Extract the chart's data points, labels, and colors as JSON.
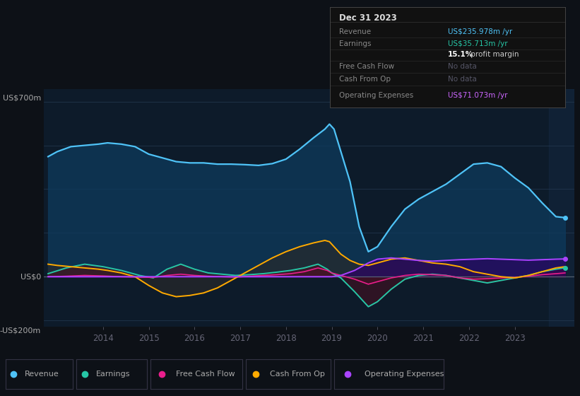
{
  "bg_color": "#0d1117",
  "plot_bg_color": "#0d1b2a",
  "grid_color": "#253a52",
  "zero_line_color": "#556070",
  "title_box": {
    "date": "Dec 31 2023",
    "rows": [
      {
        "label": "Revenue",
        "value": "US$235.978m",
        "suffix": " /yr",
        "value_color": "#4fc3f7"
      },
      {
        "label": "Earnings",
        "value": "US$35.713m",
        "suffix": " /yr",
        "value_color": "#26c6a6"
      },
      {
        "label": "",
        "value": "15.1%",
        "suffix": " profit margin",
        "value_color": "#ffffff"
      },
      {
        "label": "Free Cash Flow",
        "value": "No data",
        "suffix": "",
        "value_color": "#555566"
      },
      {
        "label": "Cash From Op",
        "value": "No data",
        "suffix": "",
        "value_color": "#555566"
      },
      {
        "label": "Operating Expenses",
        "value": "US$71.073m",
        "suffix": " /yr",
        "value_color": "#cc66ff"
      }
    ]
  },
  "ylabel_top": "US$700m",
  "ylabel_zero": "US$0",
  "ylabel_bottom": "-US$200m",
  "ylim": [
    -200,
    750
  ],
  "xlim_start": 2012.7,
  "xlim_end": 2024.3,
  "xticks": [
    2014,
    2015,
    2016,
    2017,
    2018,
    2019,
    2020,
    2021,
    2022,
    2023
  ],
  "revenue_x": [
    2012.8,
    2013.0,
    2013.3,
    2013.6,
    2013.9,
    2014.1,
    2014.4,
    2014.7,
    2015.0,
    2015.3,
    2015.6,
    2015.9,
    2016.2,
    2016.5,
    2016.8,
    2017.1,
    2017.4,
    2017.7,
    2018.0,
    2018.3,
    2018.6,
    2018.85,
    2018.95,
    2019.05,
    2019.2,
    2019.4,
    2019.6,
    2019.8,
    2020.0,
    2020.3,
    2020.6,
    2020.9,
    2021.2,
    2021.5,
    2021.8,
    2022.1,
    2022.4,
    2022.7,
    2023.0,
    2023.3,
    2023.6,
    2023.9,
    2024.1
  ],
  "revenue_y": [
    480,
    500,
    520,
    525,
    530,
    535,
    530,
    520,
    490,
    475,
    460,
    455,
    455,
    450,
    450,
    448,
    445,
    452,
    470,
    510,
    555,
    590,
    610,
    590,
    500,
    380,
    200,
    100,
    120,
    200,
    270,
    310,
    340,
    370,
    410,
    450,
    455,
    440,
    395,
    355,
    295,
    240,
    236
  ],
  "earnings_x": [
    2012.8,
    2013.2,
    2013.6,
    2014.0,
    2014.4,
    2014.8,
    2015.1,
    2015.4,
    2015.7,
    2016.0,
    2016.3,
    2016.6,
    2016.9,
    2017.2,
    2017.5,
    2017.8,
    2018.1,
    2018.4,
    2018.7,
    2018.9,
    2019.0,
    2019.2,
    2019.5,
    2019.8,
    2020.0,
    2020.3,
    2020.6,
    2020.9,
    2021.2,
    2021.5,
    2021.8,
    2022.1,
    2022.4,
    2022.7,
    2023.0,
    2023.3,
    2023.6,
    2023.9,
    2024.1
  ],
  "earnings_y": [
    12,
    35,
    50,
    40,
    25,
    5,
    -5,
    30,
    50,
    30,
    15,
    10,
    5,
    8,
    12,
    18,
    25,
    35,
    50,
    30,
    15,
    -5,
    -60,
    -120,
    -100,
    -50,
    -10,
    5,
    10,
    5,
    -5,
    -15,
    -25,
    -15,
    -5,
    5,
    20,
    30,
    36
  ],
  "fcf_x": [
    2012.8,
    2013.2,
    2013.6,
    2014.0,
    2014.4,
    2014.8,
    2015.1,
    2015.4,
    2015.7,
    2016.0,
    2016.3,
    2016.6,
    2016.9,
    2017.2,
    2017.5,
    2017.8,
    2018.1,
    2018.4,
    2018.7,
    2018.9,
    2019.0,
    2019.2,
    2019.5,
    2019.8,
    2020.0,
    2020.3,
    2020.6,
    2020.9,
    2021.2,
    2021.5,
    2021.8,
    2022.1,
    2022.4,
    2022.7,
    2023.0,
    2023.3,
    2023.6,
    2023.9,
    2024.1
  ],
  "fcf_y": [
    0,
    2,
    5,
    3,
    0,
    -2,
    -3,
    5,
    10,
    5,
    2,
    0,
    -2,
    2,
    5,
    8,
    12,
    20,
    35,
    25,
    15,
    5,
    -10,
    -30,
    -20,
    -5,
    5,
    10,
    8,
    5,
    -5,
    -10,
    -8,
    -5,
    -3,
    2,
    8,
    12,
    15
  ],
  "cfo_x": [
    2012.8,
    2013.0,
    2013.3,
    2013.6,
    2013.9,
    2014.1,
    2014.4,
    2014.7,
    2015.0,
    2015.3,
    2015.6,
    2015.9,
    2016.2,
    2016.5,
    2016.8,
    2017.1,
    2017.4,
    2017.7,
    2018.0,
    2018.3,
    2018.6,
    2018.85,
    2018.95,
    2019.05,
    2019.2,
    2019.4,
    2019.6,
    2019.8,
    2020.0,
    2020.3,
    2020.6,
    2020.9,
    2021.2,
    2021.5,
    2021.8,
    2022.1,
    2022.4,
    2022.7,
    2023.0,
    2023.3,
    2023.6,
    2023.9,
    2024.1
  ],
  "cfo_y": [
    50,
    45,
    40,
    35,
    30,
    25,
    15,
    0,
    -35,
    -65,
    -80,
    -75,
    -65,
    -45,
    -15,
    15,
    45,
    75,
    100,
    120,
    135,
    145,
    140,
    120,
    90,
    65,
    50,
    45,
    55,
    70,
    75,
    65,
    55,
    50,
    40,
    20,
    10,
    0,
    -5,
    5,
    20,
    35,
    40
  ],
  "opex_x": [
    2012.8,
    2013.2,
    2013.6,
    2014.0,
    2014.4,
    2014.8,
    2015.1,
    2015.4,
    2015.7,
    2016.0,
    2016.3,
    2016.6,
    2016.9,
    2017.2,
    2017.5,
    2017.8,
    2018.1,
    2018.4,
    2018.7,
    2018.9,
    2019.0,
    2019.2,
    2019.5,
    2019.8,
    2020.0,
    2020.3,
    2020.6,
    2020.9,
    2021.2,
    2021.5,
    2021.8,
    2022.1,
    2022.4,
    2022.7,
    2023.0,
    2023.3,
    2023.6,
    2023.9,
    2024.1
  ],
  "opex_y": [
    0,
    0,
    0,
    0,
    0,
    0,
    0,
    0,
    0,
    0,
    0,
    0,
    0,
    0,
    0,
    0,
    0,
    0,
    0,
    0,
    0,
    5,
    25,
    55,
    70,
    75,
    70,
    65,
    62,
    65,
    68,
    70,
    72,
    70,
    68,
    66,
    68,
    70,
    71
  ],
  "rev_color": "#4fc3f7",
  "earn_color": "#26c6a6",
  "fcf_color": "#e91e8c",
  "cfo_color": "#ffaa00",
  "opex_color": "#aa44ff",
  "rev_fill": "#0d3a5c",
  "earn_fill": "#0a3d30",
  "fcf_fill": "#5c0a2a",
  "cfo_fill": "#3d2800",
  "opex_fill": "#2d0066",
  "legend": [
    {
      "label": "Revenue",
      "color": "#4fc3f7"
    },
    {
      "label": "Earnings",
      "color": "#26c6a6"
    },
    {
      "label": "Free Cash Flow",
      "color": "#e91e8c"
    },
    {
      "label": "Cash From Op",
      "color": "#ffaa00"
    },
    {
      "label": "Operating Expenses",
      "color": "#aa44ff"
    }
  ]
}
